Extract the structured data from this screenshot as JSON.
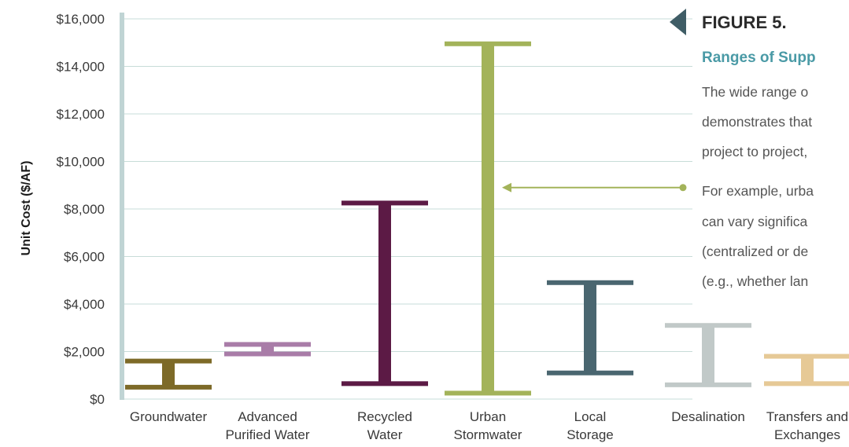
{
  "figure": {
    "number": "FIGURE 5.",
    "subtitle": "Ranges of Supp",
    "paragraph1": [
      "The wide range o",
      "demonstrates that",
      "project to project,"
    ],
    "paragraph2": [
      "For example, urba",
      "can vary significa",
      "(centralized or de",
      "(e.g., whether lan"
    ]
  },
  "colors": {
    "gridline": "#c7dcd8",
    "axis": "#c0d4d4",
    "figure_marker": "#3f5d66",
    "annotation": "#a3b35a"
  },
  "chart_data": {
    "type": "range-bar",
    "title": "",
    "xlabel": "",
    "ylabel": "Unit Cost ($/AF)",
    "ylim": [
      0,
      16000
    ],
    "yticks": [
      0,
      2000,
      4000,
      6000,
      8000,
      10000,
      12000,
      14000,
      16000
    ],
    "ytick_labels": [
      "$0",
      "$2,000",
      "$4,000",
      "$6,000",
      "$8,000",
      "$10,000",
      "$12,000",
      "$14,000",
      "$16,000"
    ],
    "grid": true,
    "categories": [
      [
        "Groundwater"
      ],
      [
        "Advanced",
        "Purified Water"
      ],
      [
        "Recycled",
        "Water"
      ],
      [
        "Urban",
        "Stormwater"
      ],
      [
        "Local",
        "Storage"
      ],
      [
        "Desalination"
      ],
      [
        "Transfers and",
        "Exchanges"
      ]
    ],
    "ranges": [
      {
        "low": 500,
        "high": 1600,
        "color": "#7d6a28"
      },
      {
        "low": 1900,
        "high": 2300,
        "color": "#a97ca8"
      },
      {
        "low": 650,
        "high": 8250,
        "color": "#5c1a45"
      },
      {
        "low": 250,
        "high": 14950,
        "color": "#a3b35a"
      },
      {
        "low": 1100,
        "high": 4900,
        "color": "#4a6670"
      },
      {
        "low": 600,
        "high": 3100,
        "color": "#c1c9c8"
      },
      {
        "low": 650,
        "high": 1800,
        "color": "#e6c996"
      }
    ],
    "annotation_target_category": 3,
    "annotation_value": 8900
  }
}
